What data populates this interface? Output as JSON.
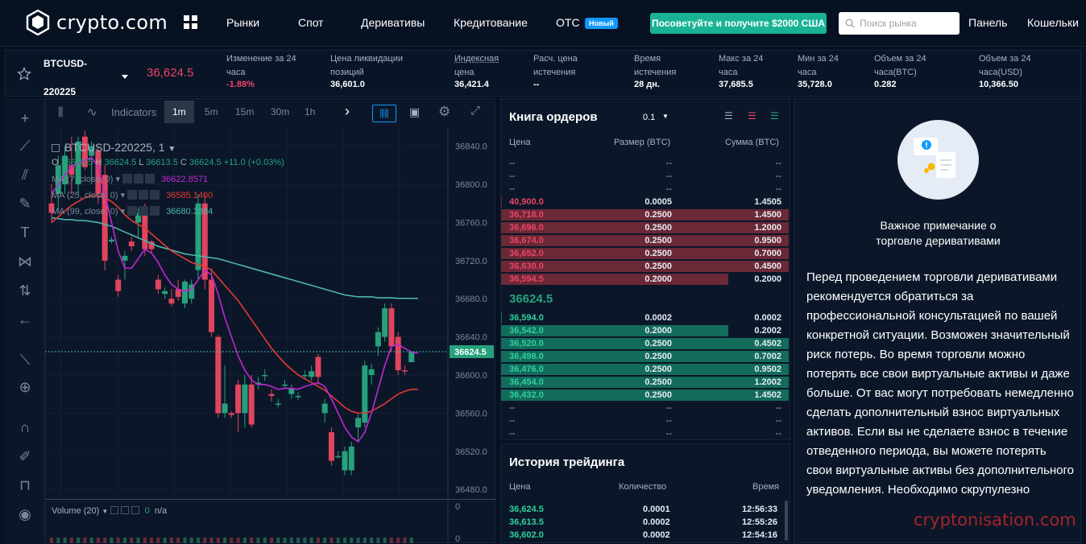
{
  "nav": {
    "logo_text": "crypto.com",
    "links": [
      "Рынки",
      "Спот",
      "Деривативы",
      "Кредитование",
      "OTC"
    ],
    "badge": "Новый",
    "promo": "Посоветуйте и получите $2000 США",
    "search_placeholder": "Поиск рынка",
    "panel": "Панель",
    "wallets": "Кошельки"
  },
  "ticker": {
    "symbol_line1": "BTCUSD-",
    "symbol_line2": "220225",
    "price": "36,624.5",
    "stats": [
      {
        "l1": "Изменение за 24",
        "l2": "часа",
        "value": "-1.88%"
      },
      {
        "l1": "Цена ликвидации",
        "l2": "позиций",
        "value": "36,601.0"
      },
      {
        "l1": "Индексная",
        "l2": "цена",
        "value": "36,421.4"
      },
      {
        "l1": "Расч. цена",
        "l2": "истечения",
        "value": "--"
      },
      {
        "l1": "Время",
        "l2": "истечения",
        "value": "28 дн."
      },
      {
        "l1": "Макс за 24",
        "l2": "часа",
        "value": "37,685.5"
      },
      {
        "l1": "Мин за 24",
        "l2": "часа",
        "value": "35,728.0"
      },
      {
        "l1": "Объем за 24",
        "l2": "часа(BTC)",
        "value": "0.282"
      },
      {
        "l1": "Объем за 24",
        "l2": "часа(USD)",
        "value": "10,366.50"
      }
    ],
    "colors": {
      "up": "#26a17b",
      "down": "#ee4466"
    }
  },
  "chart": {
    "indicators_label": "Indicators",
    "timeframes": [
      "1m",
      "5m",
      "15m",
      "30m",
      "1h"
    ],
    "active_timeframe": "1m",
    "symbol_title": "BTCUSD-220225, 1",
    "ohlc": {
      "o_label": "O",
      "o": "36613.5",
      "h_label": "H",
      "h": "36624.5",
      "l_label": "L",
      "l": "36613.5",
      "c_label": "C",
      "c": "36624.5",
      "change": "+11.0 (+0.03%)"
    },
    "ma_lines": [
      {
        "label": "MA (7, close, 0)",
        "value": "36622.8571",
        "color": "#c026d3"
      },
      {
        "label": "MA (25, close, 0)",
        "value": "36585.1400",
        "color": "#e53935"
      },
      {
        "label": "MA (99, close, 0)",
        "value": "36680.3384",
        "color": "#4db6ac"
      }
    ],
    "y_ticks": [
      "36840.0",
      "36800.0",
      "36760.0",
      "36720.0",
      "36680.0",
      "36640.0",
      "36600.0",
      "36560.0",
      "36520.0",
      "36480.0"
    ],
    "last_price_tag": "36624.5",
    "volume_label": "Volume (20)",
    "volume_value": "0",
    "volume_na": "n/a",
    "volume_axis_0": "0",
    "candle_data": {
      "ylim": [
        36470,
        36860
      ],
      "candles": [
        {
          "o": 36780,
          "h": 36800,
          "l": 36760,
          "c": 36770
        },
        {
          "o": 36790,
          "h": 36830,
          "l": 36770,
          "c": 36820
        },
        {
          "o": 36800,
          "h": 36840,
          "l": 36790,
          "c": 36830
        },
        {
          "o": 36820,
          "h": 36850,
          "l": 36790,
          "c": 36810
        },
        {
          "o": 36800,
          "h": 36850,
          "l": 36790,
          "c": 36845
        },
        {
          "o": 36850,
          "h": 36856,
          "l": 36815,
          "c": 36818
        },
        {
          "o": 36830,
          "h": 36845,
          "l": 36800,
          "c": 36840
        },
        {
          "o": 36835,
          "h": 36840,
          "l": 36780,
          "c": 36790
        },
        {
          "o": 36810,
          "h": 36820,
          "l": 36710,
          "c": 36720
        },
        {
          "o": 36740,
          "h": 36745,
          "l": 36738,
          "c": 36742
        },
        {
          "o": 36700,
          "h": 36705,
          "l": 36682,
          "c": 36688
        },
        {
          "o": 36720,
          "h": 36730,
          "l": 36700,
          "c": 36725
        },
        {
          "o": 36740,
          "h": 36745,
          "l": 36730,
          "c": 36735
        },
        {
          "o": 36760,
          "h": 36775,
          "l": 36745,
          "c": 36770
        },
        {
          "o": 36770,
          "h": 36780,
          "l": 36725,
          "c": 36732
        },
        {
          "o": 36740,
          "h": 36742,
          "l": 36728,
          "c": 36732
        },
        {
          "o": 36700,
          "h": 36705,
          "l": 36685,
          "c": 36690
        },
        {
          "o": 36685,
          "h": 36692,
          "l": 36680,
          "c": 36688
        },
        {
          "o": 36680,
          "h": 36690,
          "l": 36672,
          "c": 36675
        },
        {
          "o": 36690,
          "h": 36700,
          "l": 36678,
          "c": 36682
        },
        {
          "o": 36675,
          "h": 36700,
          "l": 36670,
          "c": 36698
        },
        {
          "o": 36680,
          "h": 36700,
          "l": 36675,
          "c": 36695
        },
        {
          "o": 36710,
          "h": 36790,
          "l": 36700,
          "c": 36780
        },
        {
          "o": 36780,
          "h": 36790,
          "l": 36690,
          "c": 36700
        },
        {
          "o": 36700,
          "h": 36712,
          "l": 36640,
          "c": 36645
        },
        {
          "o": 36640,
          "h": 36642,
          "l": 36555,
          "c": 36560
        },
        {
          "o": 36560,
          "h": 36610,
          "l": 36555,
          "c": 36570
        },
        {
          "o": 36560,
          "h": 36562,
          "l": 36555,
          "c": 36558
        },
        {
          "o": 36590,
          "h": 36595,
          "l": 36540,
          "c": 36560
        },
        {
          "o": 36560,
          "h": 36600,
          "l": 36545,
          "c": 36590
        },
        {
          "o": 36590,
          "h": 36600,
          "l": 36545,
          "c": 36548
        },
        {
          "o": 36590,
          "h": 36598,
          "l": 36585,
          "c": 36592
        },
        {
          "o": 36600,
          "h": 36606,
          "l": 36594,
          "c": 36600
        },
        {
          "o": 36580,
          "h": 36585,
          "l": 36572,
          "c": 36578
        },
        {
          "o": 36570,
          "h": 36575,
          "l": 36566,
          "c": 36570
        },
        {
          "o": 36590,
          "h": 36595,
          "l": 36586,
          "c": 36590
        },
        {
          "o": 36580,
          "h": 36590,
          "l": 36575,
          "c": 36586
        },
        {
          "o": 36578,
          "h": 36582,
          "l": 36574,
          "c": 36578
        },
        {
          "o": 36600,
          "h": 36605,
          "l": 36596,
          "c": 36600
        },
        {
          "o": 36598,
          "h": 36610,
          "l": 36594,
          "c": 36604
        },
        {
          "o": 36619,
          "h": 36622,
          "l": 36590,
          "c": 36598
        },
        {
          "o": 36560,
          "h": 36575,
          "l": 36550,
          "c": 36570
        },
        {
          "o": 36540,
          "h": 36545,
          "l": 36505,
          "c": 36510
        },
        {
          "o": 36515,
          "h": 36520,
          "l": 36512,
          "c": 36515
        },
        {
          "o": 36500,
          "h": 36525,
          "l": 36495,
          "c": 36520
        },
        {
          "o": 36500,
          "h": 36530,
          "l": 36495,
          "c": 36525
        },
        {
          "o": 36545,
          "h": 36560,
          "l": 36530,
          "c": 36555
        },
        {
          "o": 36550,
          "h": 36615,
          "l": 36545,
          "c": 36610
        },
        {
          "o": 36600,
          "h": 36612,
          "l": 36590,
          "c": 36606
        },
        {
          "o": 36630,
          "h": 36650,
          "l": 36620,
          "c": 36645
        },
        {
          "o": 36640,
          "h": 36675,
          "l": 36635,
          "c": 36670
        },
        {
          "o": 36670,
          "h": 36675,
          "l": 36625,
          "c": 36630
        },
        {
          "o": 36640,
          "h": 36645,
          "l": 36600,
          "c": 36605
        },
        {
          "o": 36605,
          "h": 36610,
          "l": 36600,
          "c": 36604
        },
        {
          "o": 36613.5,
          "h": 36624.5,
          "l": 36613.5,
          "c": 36624.5
        }
      ],
      "ma7": [
        36790,
        36800,
        36810,
        36818,
        36822,
        36825,
        36828,
        36818,
        36790,
        36760,
        36730,
        36712,
        36712,
        36722,
        36732,
        36728,
        36718,
        36705,
        36695,
        36690,
        36688,
        36690,
        36700,
        36710,
        36705,
        36685,
        36660,
        36640,
        36620,
        36605,
        36595,
        36590,
        36590,
        36588,
        36585,
        36586,
        36586,
        36585,
        36588,
        36590,
        36592,
        36588,
        36575,
        36560,
        36545,
        36535,
        36530,
        36540,
        36560,
        36585,
        36610,
        36630,
        36632,
        36628,
        36624,
        36622.9
      ],
      "ma25": [
        36760,
        36766,
        36772,
        36778,
        36782,
        36786,
        36788,
        36788,
        36786,
        36782,
        36776,
        36768,
        36762,
        36758,
        36754,
        36748,
        36742,
        36736,
        36730,
        36726,
        36722,
        36718,
        36716,
        36714,
        36710,
        36702,
        36694,
        36686,
        36678,
        36668,
        36658,
        36648,
        36638,
        36628,
        36620,
        36612,
        36606,
        36600,
        36596,
        36592,
        36588,
        36584,
        36578,
        36572,
        36566,
        36562,
        36560,
        36560,
        36562,
        36566,
        36570,
        36575,
        36580,
        36583,
        36585,
        36585.1
      ],
      "ma99": [
        36765,
        36764,
        36763,
        36763,
        36762,
        36762,
        36761,
        36760,
        36758,
        36756,
        36753,
        36750,
        36747,
        36744,
        36741,
        36738,
        36735,
        36733,
        36731,
        36729,
        36727,
        36726,
        36725,
        36724,
        36723,
        36722,
        36720,
        36718,
        36716,
        36714,
        36712,
        36710,
        36708,
        36706,
        36704,
        36702,
        36700,
        36698,
        36696,
        36694,
        36692,
        36690,
        36688,
        36686,
        36684,
        36683,
        36682,
        36682,
        36682,
        36681,
        36681,
        36681,
        36680.5,
        36680.4,
        36680.4,
        36680.3
      ]
    }
  },
  "orderbook": {
    "title": "Книга ордеров",
    "grouping": "0.1",
    "headers": {
      "price": "Цена",
      "size": "Размер (BTC)",
      "sum": "Сумма (BTC)"
    },
    "empty_top": 3,
    "asks": [
      {
        "price": "40,900.0",
        "size": "0.0005",
        "sum": "1.4505",
        "depth": 0.003
      },
      {
        "price": "36,718.0",
        "size": "0.2500",
        "sum": "1.4500",
        "depth": 1.0
      },
      {
        "price": "36,696.0",
        "size": "0.2500",
        "sum": "1.2000",
        "depth": 1.0
      },
      {
        "price": "36,674.0",
        "size": "0.2500",
        "sum": "0.9500",
        "depth": 1.0
      },
      {
        "price": "36,652.0",
        "size": "0.2500",
        "sum": "0.7000",
        "depth": 1.0
      },
      {
        "price": "36,630.0",
        "size": "0.2500",
        "sum": "0.4500",
        "depth": 1.0
      },
      {
        "price": "36,594.5",
        "size": "0.2000",
        "sum": "0.2000",
        "depth": 0.79
      }
    ],
    "mid_price": "36624.5",
    "bids": [
      {
        "price": "36,594.0",
        "size": "0.0002",
        "sum": "0.0002",
        "depth": 0.003
      },
      {
        "price": "36,542.0",
        "size": "0.2000",
        "sum": "0.2002",
        "depth": 0.79
      },
      {
        "price": "36,520.0",
        "size": "0.2500",
        "sum": "0.4502",
        "depth": 1.0
      },
      {
        "price": "36,498.0",
        "size": "0.2500",
        "sum": "0.7002",
        "depth": 1.0
      },
      {
        "price": "36,476.0",
        "size": "0.2500",
        "sum": "0.9502",
        "depth": 1.0
      },
      {
        "price": "36,454.0",
        "size": "0.2500",
        "sum": "1.2002",
        "depth": 1.0
      },
      {
        "price": "36,432.0",
        "size": "0.2500",
        "sum": "1.4502",
        "depth": 1.0
      }
    ],
    "empty_bottom": 3,
    "dash": "--"
  },
  "history": {
    "title": "История трейдинга",
    "headers": {
      "price": "Цена",
      "qty": "Количество",
      "time": "Время"
    },
    "rows": [
      {
        "price": "36,624.5",
        "qty": "0.0001",
        "time": "12:56:33"
      },
      {
        "price": "36,613.5",
        "qty": "0.0002",
        "time": "12:55:26"
      },
      {
        "price": "36,602.0",
        "qty": "0.0002",
        "time": "12:54:16"
      }
    ]
  },
  "notice": {
    "title_l1": "Важное примечание о",
    "title_l2": "торговле деривативами",
    "body": "Перед проведением торговли деривативами рекомендуется обратиться за профессиональной консультацией по вашей конкретной ситуации. Возможен значительный риск потерь. Во время торговли можно потерять все свои виртуальные активы и даже больше. От вас могут потребовать немедленно сделать дополнительный взнос виртуальных активов. Если вы не сделаете взнос в течение отведенного периода, вы можете потерять свои виртуальные активы без дополнительного уведомления. Необходимо скрупулезно"
  },
  "watermark": "cryptonisation.com",
  "colors": {
    "bg": "#061121",
    "panel": "#0b1729",
    "green": "#26a17b",
    "red": "#ee4466",
    "accent": "#1199fa"
  }
}
